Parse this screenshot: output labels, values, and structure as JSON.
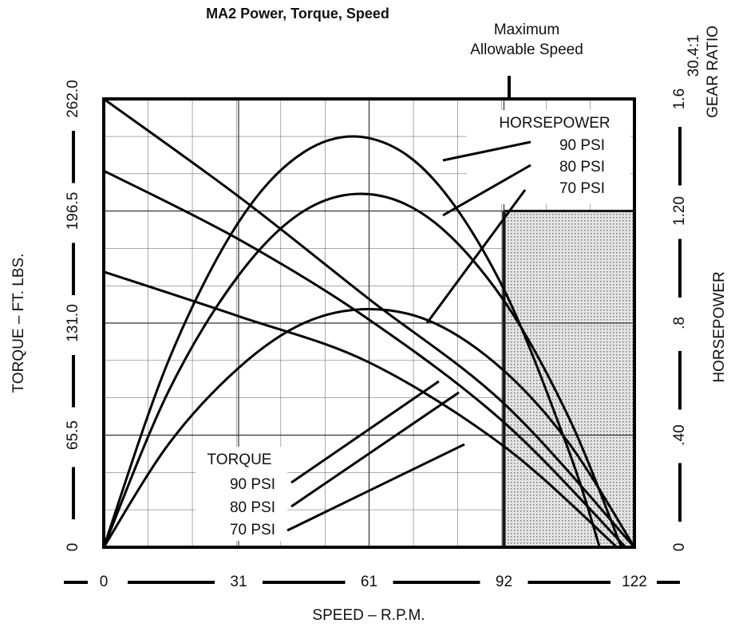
{
  "chart_data": {
    "type": "line",
    "title": "MA2 Power, Torque, Speed",
    "xlabel": "SPEED – R.P.M.",
    "ylabel": "TORQUE – FT. LBS.",
    "y2label": "HORSEPOWER",
    "gear_ratio": [
      "30.4:1",
      "GEAR RATIO"
    ],
    "max_speed_label": [
      "Maximum",
      "Allowable Speed"
    ],
    "hp_label": "HORSEPOWER",
    "torque_label": "TORQUE",
    "xlim": [
      0,
      122
    ],
    "xticks": [
      0,
      31,
      61,
      92,
      122
    ],
    "ylim": [
      0,
      262
    ],
    "yticks": [
      0,
      65.5,
      {
        "value": 131,
        "label": "131.0"
      },
      196.5,
      {
        "value": 262,
        "label": "262.0"
      }
    ],
    "y2lim": [
      0,
      1.6
    ],
    "y2ticks": [
      0,
      {
        "value": 0.4,
        "label": ".40"
      },
      {
        "value": 0.8,
        "label": ".8"
      },
      {
        "value": 1.2,
        "label": "1.20"
      },
      1.6
    ],
    "grid": true,
    "series": [
      {
        "name": "90 PSI",
        "group": "hp",
        "axis": "y2",
        "color": "#000000",
        "x": [
          0,
          15,
          31,
          46,
          61,
          76,
          92,
          107,
          114
        ],
        "values": [
          0,
          0.67,
          1.16,
          1.41,
          1.46,
          1.31,
          0.92,
          0.34,
          0
        ]
      },
      {
        "name": "80 PSI",
        "group": "hp",
        "axis": "y2",
        "color": "#000000",
        "x": [
          0,
          15,
          31,
          46,
          61,
          76,
          92,
          107,
          119
        ],
        "values": [
          0,
          0.56,
          0.97,
          1.2,
          1.26,
          1.16,
          0.88,
          0.46,
          0
        ]
      },
      {
        "name": "70 PSI",
        "group": "hp",
        "axis": "y2",
        "color": "#000000",
        "x": [
          0,
          15,
          31,
          46,
          61,
          76,
          92,
          107,
          122
        ],
        "values": [
          0,
          0.37,
          0.64,
          0.8,
          0.85,
          0.8,
          0.63,
          0.37,
          0
        ]
      },
      {
        "name": "90 PSI",
        "group": "torque",
        "color": "#000000",
        "x": [
          0,
          31,
          61,
          92,
          122
        ],
        "values": [
          262,
          205,
          145,
          84,
          0
        ]
      },
      {
        "name": "80 PSI",
        "group": "torque",
        "color": "#000000",
        "x": [
          0,
          31,
          61,
          92,
          120
        ],
        "values": [
          220,
          180,
          133,
          73,
          0
        ]
      },
      {
        "name": "70 PSI",
        "group": "torque",
        "color": "#000000",
        "x": [
          0,
          31,
          61,
          92,
          118
        ],
        "values": [
          161,
          135,
          108,
          59,
          0
        ]
      }
    ]
  }
}
